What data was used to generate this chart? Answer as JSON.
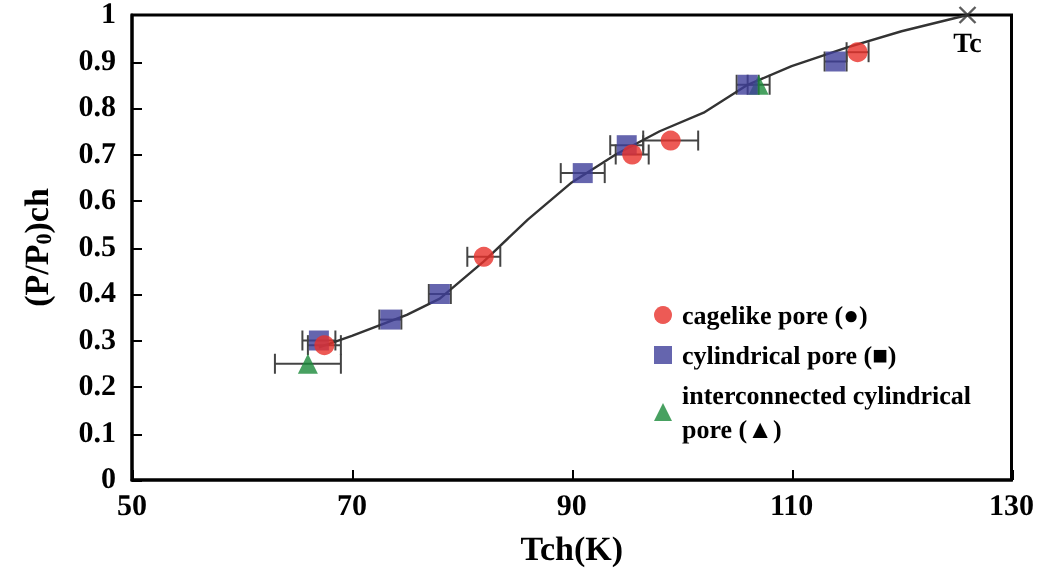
{
  "chart_data": {
    "type": "scatter",
    "xlabel": "Tch(K)",
    "ylabel": "(P/P$_{0}$)ch",
    "xlim": [
      50,
      130
    ],
    "xticks": [
      50,
      70,
      90,
      110,
      130
    ],
    "ylim": [
      0,
      1
    ],
    "yticks": [
      0,
      0.1,
      0.2,
      0.3,
      0.4,
      0.5,
      0.6,
      0.7,
      0.8,
      0.9,
      1
    ],
    "grid": false,
    "legend": "bottom right",
    "series": [
      {
        "name": "cagelike pore (●)",
        "color": "#e8312a",
        "marker": "circle",
        "x": [
          67.5,
          82,
          95.5,
          99,
          116
        ],
        "values": [
          0.29,
          0.48,
          0.7,
          0.73,
          0.92
        ],
        "xerrors": [
          1.5,
          1.5,
          1.5,
          2.5,
          1
        ]
      },
      {
        "name": "cylindrical pore (■)",
        "color": "#3f3f9a",
        "marker": "square",
        "x": [
          67,
          73.5,
          78,
          91,
          95,
          106,
          114
        ],
        "values": [
          0.3,
          0.345,
          0.4,
          0.66,
          0.72,
          0.85,
          0.9
        ],
        "xerrors": [
          1.5,
          1,
          1,
          2,
          1.5,
          1,
          1
        ]
      },
      {
        "name": "interconnected cylindrical pore (▲)",
        "color": "#1a8a3a",
        "marker": "triangle",
        "x": [
          66,
          107
        ],
        "values": [
          0.25,
          0.85
        ],
        "xerrors": [
          3,
          1
        ]
      },
      {
        "type": "line",
        "color": "#333333",
        "marker": "none",
        "x": [
          67,
          70,
          75,
          78,
          82,
          86,
          90,
          94,
          98,
          102,
          106,
          110,
          115,
          120,
          126
        ],
        "values": [
          0.285,
          0.31,
          0.355,
          0.39,
          0.47,
          0.56,
          0.64,
          0.7,
          0.75,
          0.79,
          0.85,
          0.89,
          0.93,
          0.965,
          1
        ]
      },
      {
        "color": "#333333",
        "marker": "cross",
        "x": [
          126
        ],
        "values": [
          1
        ]
      }
    ],
    "annotations": [
      {
        "text": "Tc",
        "x": 126,
        "y": 1
      }
    ]
  }
}
